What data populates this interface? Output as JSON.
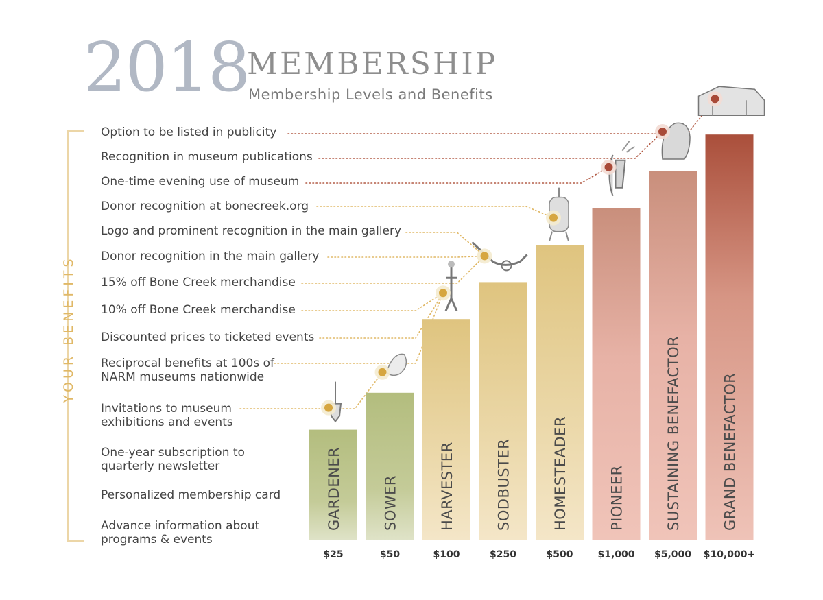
{
  "header": {
    "year": "2018",
    "title": "MEMBERSHIP",
    "subtitle": "Membership Levels and Benefits"
  },
  "side_label": "YOUR BENEFITS",
  "benefits": [
    {
      "line1": "Option to be listed in publicity",
      "line2": ""
    },
    {
      "line1": "Recognition in museum publications",
      "line2": ""
    },
    {
      "line1": "One-time evening use of museum",
      "line2": ""
    },
    {
      "line1": "Donor recognition at bonecreek.org",
      "line2": ""
    },
    {
      "line1": "Logo and prominent recognition in the main gallery",
      "line2": ""
    },
    {
      "line1": "Donor recognition in the main gallery",
      "line2": ""
    },
    {
      "line1": "15% off Bone Creek merchandise",
      "line2": ""
    },
    {
      "line1": "10% off Bone Creek merchandise",
      "line2": ""
    },
    {
      "line1": "Discounted prices to ticketed events",
      "line2": ""
    },
    {
      "line1": "Reciprocal benefits at 100s of",
      "line2": "NARM museums nationwide"
    },
    {
      "line1": "Invitations to museum",
      "line2": "exhibitions and events"
    },
    {
      "line1": "One-year subscription to",
      "line2": "quarterly newsletter"
    },
    {
      "line1": "Personalized membership card",
      "line2": ""
    },
    {
      "line1": "Advance information about",
      "line2": "programs & events"
    }
  ],
  "colors": {
    "green": "#b9c287",
    "gold": "#e2c98a",
    "salmon": "#e7b2a6",
    "rust": "#b25a44",
    "dots_gold": "#e0b866",
    "dots_rust": "#b25a44"
  },
  "chart_data": {
    "type": "bar",
    "categories": [
      "GARDENER",
      "SOWER",
      "HARVESTER",
      "SODBUSTER",
      "HOMESTEADER",
      "PIONEER",
      "SUSTAINING BENEFACTOR",
      "GRAND BENEFACTOR"
    ],
    "prices": [
      "$25",
      "$50",
      "$100",
      "$250",
      "$500",
      "$1,000",
      "$5,000",
      "$10,000+"
    ],
    "values": [
      3,
      4,
      6,
      7,
      8,
      9,
      10,
      11
    ],
    "bar_colors": [
      "green",
      "green",
      "gold",
      "gold",
      "gold",
      "salmon",
      "salmon",
      "rust"
    ],
    "icons": [
      "trowel-icon",
      "seed-icon",
      "farmer-icon",
      "plow-icon",
      "stove-icon",
      "harvester-figure-icon",
      "bison-icon",
      "barn-icon"
    ],
    "title": "",
    "xlabel": "",
    "ylabel": ""
  }
}
